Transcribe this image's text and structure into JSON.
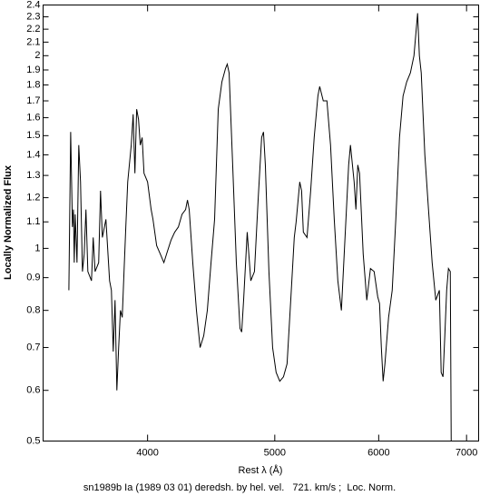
{
  "chart_data": {
    "type": "line",
    "title": "sn1989b Ia (1989 03 01) deredsh. by hel. vel.   721. km/s ;  Loc. Norm.",
    "xlabel": "Rest λ (Å)",
    "ylabel": "Locally Normalized Flux",
    "xlog": true,
    "ylog": true,
    "color": "#000000",
    "xlim": [
      3330,
      7150
    ],
    "ylim": [
      0.5,
      2.4
    ],
    "xticks": [
      4000,
      5000,
      6000,
      7000
    ],
    "yticks": [
      0.5,
      0.6,
      0.7,
      0.8,
      0.9,
      1,
      1.1,
      1.2,
      1.3,
      1.4,
      1.5,
      1.6,
      1.7,
      1.8,
      1.9,
      2,
      2.1,
      2.2,
      2.3,
      2.4
    ],
    "x": [
      3484,
      3495,
      3506,
      3512,
      3517,
      3523,
      3534,
      3545,
      3556,
      3568,
      3579,
      3590,
      3602,
      3625,
      3636,
      3648,
      3671,
      3683,
      3695,
      3718,
      3742,
      3754,
      3766,
      3778,
      3790,
      3802,
      3814,
      3826,
      3838,
      3850,
      3863,
      3887,
      3900,
      3912,
      3924,
      3937,
      3949,
      3962,
      3975,
      4000,
      4025,
      4038,
      4064,
      4090,
      4116,
      4142,
      4168,
      4195,
      4222,
      4249,
      4276,
      4290,
      4303,
      4330,
      4358,
      4386,
      4414,
      4442,
      4471,
      4499,
      4528,
      4557,
      4586,
      4600,
      4615,
      4644,
      4674,
      4704,
      4718,
      4734,
      4764,
      4794,
      4825,
      4856,
      4886,
      4902,
      4918,
      4949,
      4981,
      5012,
      5044,
      5077,
      5109,
      5142,
      5174,
      5191,
      5224,
      5241,
      5257,
      5291,
      5325,
      5358,
      5393,
      5410,
      5444,
      5479,
      5514,
      5550,
      5585,
      5620,
      5656,
      5692,
      5710,
      5747,
      5765,
      5784,
      5802,
      5839,
      5876,
      5914,
      5952,
      5990,
      6009,
      6028,
      6047,
      6066,
      6105,
      6144,
      6183,
      6223,
      6262,
      6302,
      6343,
      6383,
      6424,
      6444,
      6465,
      6506,
      6548,
      6590,
      6632,
      6674,
      6695,
      6717,
      6738,
      6760,
      6781,
      6803,
      6814
    ],
    "values": [
      0.86,
      1.52,
      1.08,
      1.15,
      0.95,
      1.13,
      0.95,
      1.45,
      1.27,
      0.92,
      0.98,
      1.15,
      0.92,
      0.89,
      1.04,
      0.92,
      0.95,
      1.23,
      1.04,
      1.11,
      0.89,
      0.86,
      0.69,
      0.83,
      0.6,
      0.7,
      0.8,
      0.78,
      0.92,
      1.08,
      1.27,
      1.45,
      1.62,
      1.31,
      1.65,
      1.59,
      1.45,
      1.49,
      1.31,
      1.27,
      1.15,
      1.11,
      1.01,
      0.98,
      0.95,
      0.99,
      1.03,
      1.06,
      1.08,
      1.13,
      1.15,
      1.19,
      1.15,
      0.95,
      0.8,
      0.7,
      0.73,
      0.8,
      0.95,
      1.11,
      1.65,
      1.82,
      1.91,
      1.94,
      1.88,
      1.35,
      0.95,
      0.75,
      0.74,
      0.83,
      1.06,
      0.89,
      0.92,
      1.19,
      1.49,
      1.52,
      1.35,
      0.92,
      0.7,
      0.64,
      0.62,
      0.63,
      0.66,
      0.83,
      1.04,
      1.1,
      1.27,
      1.23,
      1.06,
      1.04,
      1.23,
      1.49,
      1.73,
      1.79,
      1.7,
      1.7,
      1.45,
      1.11,
      0.89,
      0.8,
      1.04,
      1.35,
      1.45,
      1.27,
      1.15,
      1.35,
      1.31,
      0.98,
      0.83,
      0.93,
      0.92,
      0.84,
      0.82,
      0.7,
      0.62,
      0.66,
      0.78,
      0.86,
      1.11,
      1.49,
      1.73,
      1.82,
      1.88,
      2.0,
      2.33,
      2.0,
      1.88,
      1.4,
      1.15,
      0.95,
      0.83,
      0.86,
      0.64,
      0.63,
      0.73,
      0.86,
      0.93,
      0.92,
      0.5
    ]
  }
}
